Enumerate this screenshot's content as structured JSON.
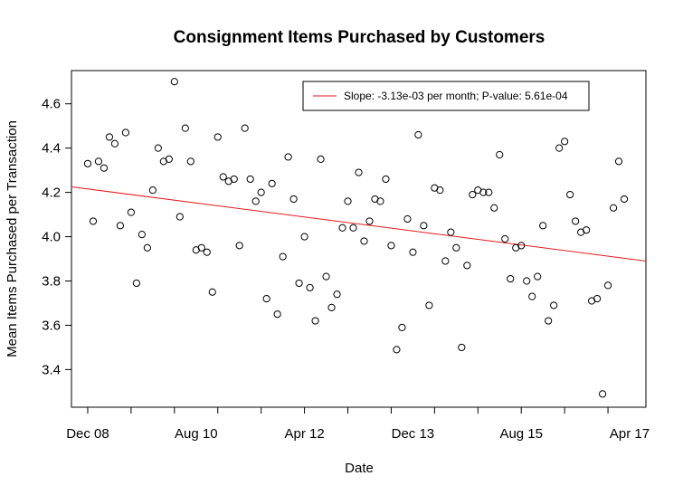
{
  "chart_data": {
    "type": "scatter",
    "title": "Consignment Items Purchased by Customers",
    "xlabel": "Date",
    "ylabel": "Mean Items Purchased per Transaction",
    "x_ticks": [
      "Dec 08",
      "Aug 10",
      "Apr 12",
      "Dec 13",
      "Aug 15",
      "Apr 17"
    ],
    "y_ticks": [
      "3.4",
      "3.6",
      "3.8",
      "4.0",
      "4.2",
      "4.4",
      "4.6"
    ],
    "xlim": [
      "2008-09",
      "2017-07"
    ],
    "ylim": [
      3.23,
      4.75
    ],
    "grid": false,
    "legend": {
      "position": "top-right",
      "label": "Slope: -3.13e-03 per month; P-value: 5.61e-04"
    },
    "line_color": "#e31a1c",
    "point_color": "#000000",
    "trend_line": {
      "x_start": "2008-09",
      "y_start": 4.225,
      "x_end": "2017-07",
      "y_end": 3.89
    },
    "series": [
      {
        "points": [
          [
            "2008-12",
            4.33
          ],
          [
            "2009-01",
            4.07
          ],
          [
            "2009-02",
            4.34
          ],
          [
            "2009-03",
            4.31
          ],
          [
            "2009-04",
            4.45
          ],
          [
            "2009-05",
            4.42
          ],
          [
            "2009-06",
            4.05
          ],
          [
            "2009-07",
            4.47
          ],
          [
            "2009-08",
            4.11
          ],
          [
            "2009-09",
            3.79
          ],
          [
            "2009-10",
            4.01
          ],
          [
            "2009-11",
            3.95
          ],
          [
            "2009-12",
            4.21
          ],
          [
            "2010-01",
            4.4
          ],
          [
            "2010-02",
            4.34
          ],
          [
            "2010-03",
            4.35
          ],
          [
            "2010-04",
            4.7
          ],
          [
            "2010-05",
            4.09
          ],
          [
            "2010-06",
            4.49
          ],
          [
            "2010-07",
            4.34
          ],
          [
            "2010-08",
            3.94
          ],
          [
            "2010-09",
            3.95
          ],
          [
            "2010-10",
            3.93
          ],
          [
            "2010-11",
            3.75
          ],
          [
            "2010-12",
            4.45
          ],
          [
            "2011-01",
            4.27
          ],
          [
            "2011-02",
            4.25
          ],
          [
            "2011-03",
            4.26
          ],
          [
            "2011-04",
            3.96
          ],
          [
            "2011-05",
            4.49
          ],
          [
            "2011-06",
            4.26
          ],
          [
            "2011-07",
            4.16
          ],
          [
            "2011-08",
            4.2
          ],
          [
            "2011-09",
            3.72
          ],
          [
            "2011-10",
            4.24
          ],
          [
            "2011-11",
            3.65
          ],
          [
            "2011-12",
            3.91
          ],
          [
            "2012-01",
            4.36
          ],
          [
            "2012-02",
            4.17
          ],
          [
            "2012-03",
            3.79
          ],
          [
            "2012-04",
            4.0
          ],
          [
            "2012-05",
            3.77
          ],
          [
            "2012-06",
            3.62
          ],
          [
            "2012-07",
            4.35
          ],
          [
            "2012-08",
            3.82
          ],
          [
            "2012-09",
            3.68
          ],
          [
            "2012-10",
            3.74
          ],
          [
            "2012-11",
            4.04
          ],
          [
            "2012-12",
            4.16
          ],
          [
            "2013-01",
            4.04
          ],
          [
            "2013-02",
            4.29
          ],
          [
            "2013-03",
            3.98
          ],
          [
            "2013-04",
            4.07
          ],
          [
            "2013-05",
            4.17
          ],
          [
            "2013-06",
            4.16
          ],
          [
            "2013-07",
            4.26
          ],
          [
            "2013-08",
            3.96
          ],
          [
            "2013-09",
            3.49
          ],
          [
            "2013-10",
            3.59
          ],
          [
            "2013-11",
            4.08
          ],
          [
            "2013-12",
            3.93
          ],
          [
            "2014-01",
            4.46
          ],
          [
            "2014-02",
            4.05
          ],
          [
            "2014-03",
            3.69
          ],
          [
            "2014-04",
            4.22
          ],
          [
            "2014-05",
            4.21
          ],
          [
            "2014-06",
            3.89
          ],
          [
            "2014-07",
            4.02
          ],
          [
            "2014-08",
            3.95
          ],
          [
            "2014-09",
            3.5
          ],
          [
            "2014-10",
            3.87
          ],
          [
            "2014-11",
            4.19
          ],
          [
            "2014-12",
            4.21
          ],
          [
            "2015-01",
            4.2
          ],
          [
            "2015-02",
            4.2
          ],
          [
            "2015-03",
            4.13
          ],
          [
            "2015-04",
            4.37
          ],
          [
            "2015-05",
            3.99
          ],
          [
            "2015-06",
            3.81
          ],
          [
            "2015-07",
            3.95
          ],
          [
            "2015-08",
            3.96
          ],
          [
            "2015-09",
            3.8
          ],
          [
            "2015-10",
            3.73
          ],
          [
            "2015-11",
            3.82
          ],
          [
            "2015-12",
            4.05
          ],
          [
            "2016-01",
            3.62
          ],
          [
            "2016-02",
            3.69
          ],
          [
            "2016-03",
            4.4
          ],
          [
            "2016-04",
            4.43
          ],
          [
            "2016-05",
            4.19
          ],
          [
            "2016-06",
            4.07
          ],
          [
            "2016-07",
            4.02
          ],
          [
            "2016-08",
            4.03
          ],
          [
            "2016-09",
            3.71
          ],
          [
            "2016-10",
            3.72
          ],
          [
            "2016-11",
            3.29
          ],
          [
            "2016-12",
            3.78
          ],
          [
            "2017-01",
            4.13
          ],
          [
            "2017-02",
            4.34
          ],
          [
            "2017-03",
            4.17
          ]
        ]
      }
    ]
  }
}
